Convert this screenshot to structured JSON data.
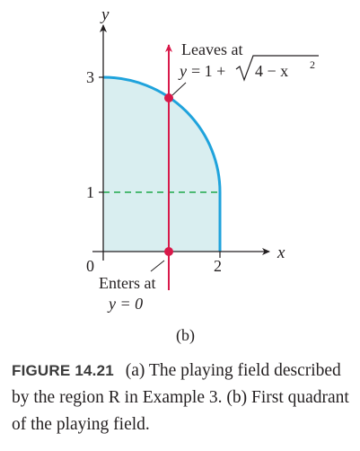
{
  "figure": {
    "axis_x_label": "x",
    "axis_y_label": "y",
    "origin_label": "0",
    "ticks_y": [
      "3",
      "1"
    ],
    "tick_x": "2",
    "leaves_label_line1": "Leaves at",
    "leaves_y": "y",
    "leaves_eq": "= 1 +",
    "leaves_sqrt_arg": "4 − x",
    "leaves_sup": "2",
    "enters_label_line1": "Enters at",
    "enters_label_line2": "y = 0",
    "panel_label": "(b)",
    "colors": {
      "region_fill": "#d9eef0",
      "boundary": "#1fa3dc",
      "vertical_line": "#d8194a",
      "dashed": "#1fa84a",
      "axes": "#231f20"
    }
  },
  "caption": {
    "label": "FIGURE 14.21",
    "text": "(a) The playing field described by the region R in Example 3. (b) First quadrant of the playing field."
  }
}
